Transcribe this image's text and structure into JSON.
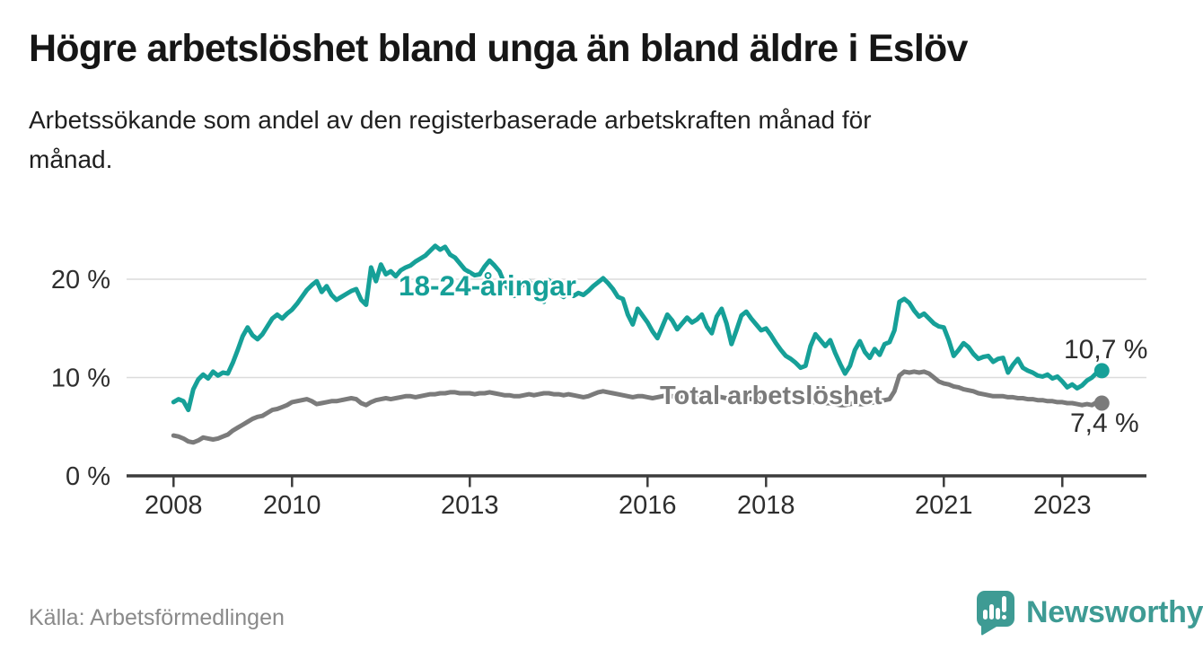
{
  "header": {
    "title": "Högre arbetslöshet bland unga än bland äldre i Eslöv",
    "subtitle": "Arbetssökande som andel av den registerbaserade arbetskraften månad för månad.",
    "subtitle_lines": [
      "Arbetssökande som andel av den registerbaserade arbetskraften månad för",
      "månad."
    ]
  },
  "footer": {
    "source": "Källa: Arbetsförmedlingen",
    "brand": "Newsworthy"
  },
  "colors": {
    "accent_teal": "#16a098",
    "logo_teal": "#3E9B94",
    "gray_line": "#7b7b7b",
    "grid": "#dcdcdc",
    "axis": "#3c3c3c",
    "tick_text": "#2e2e2e",
    "end_label_text": "#2d2d2d"
  },
  "chart_data": {
    "type": "line",
    "title": "",
    "xlabel": "",
    "ylabel": "",
    "unit": "percent of registered labour force",
    "frequency": "monthly",
    "start": "2008-01",
    "end": "2023-09",
    "ylim": [
      0,
      24.5
    ],
    "grid": "horizontal",
    "ytick_values": [
      0,
      10,
      20
    ],
    "ytick_labels": [
      "0 %",
      "10 %",
      "20 %"
    ],
    "xticks": [
      2008,
      2010,
      2013,
      2016,
      2018,
      2021,
      2023
    ],
    "series": [
      {
        "name": "Total arbetslöshet",
        "color": "#7b7b7b",
        "end_label": "7,4 %",
        "end_value": 7.4,
        "values": [
          4.1,
          4.0,
          3.8,
          3.5,
          3.4,
          3.6,
          3.9,
          3.8,
          3.7,
          3.8,
          4.0,
          4.2,
          4.6,
          4.9,
          5.2,
          5.5,
          5.8,
          6.0,
          6.1,
          6.4,
          6.7,
          6.8,
          7.0,
          7.2,
          7.5,
          7.6,
          7.7,
          7.8,
          7.6,
          7.3,
          7.4,
          7.5,
          7.6,
          7.6,
          7.7,
          7.8,
          7.9,
          7.8,
          7.4,
          7.2,
          7.5,
          7.7,
          7.8,
          7.9,
          7.8,
          7.9,
          8.0,
          8.1,
          8.1,
          8.0,
          8.1,
          8.2,
          8.3,
          8.3,
          8.4,
          8.4,
          8.5,
          8.5,
          8.4,
          8.4,
          8.4,
          8.3,
          8.4,
          8.4,
          8.5,
          8.4,
          8.3,
          8.2,
          8.2,
          8.1,
          8.1,
          8.2,
          8.3,
          8.2,
          8.3,
          8.4,
          8.4,
          8.3,
          8.3,
          8.2,
          8.3,
          8.2,
          8.1,
          8.0,
          8.1,
          8.3,
          8.5,
          8.6,
          8.5,
          8.4,
          8.3,
          8.2,
          8.1,
          8.0,
          8.1,
          8.1,
          8.0,
          7.9,
          8.0,
          8.1,
          8.2,
          8.1,
          8.0,
          8.1,
          8.0,
          7.9,
          8.0,
          8.0,
          8.0,
          8.0,
          8.1,
          8.0,
          7.9,
          7.9,
          8.0,
          7.9,
          7.9,
          7.8,
          7.9,
          7.8,
          7.8,
          7.8,
          7.7,
          7.7,
          7.6,
          7.6,
          7.7,
          7.6,
          7.6,
          7.5,
          7.5,
          7.4,
          7.4,
          7.4,
          7.3,
          7.2,
          7.2,
          7.3,
          7.4,
          7.3,
          7.3,
          7.4,
          7.5,
          7.6,
          7.7,
          7.8,
          8.6,
          10.2,
          10.6,
          10.5,
          10.6,
          10.5,
          10.6,
          10.4,
          10.0,
          9.6,
          9.4,
          9.3,
          9.1,
          9.0,
          8.8,
          8.7,
          8.6,
          8.4,
          8.3,
          8.2,
          8.1,
          8.1,
          8.1,
          8.0,
          8.0,
          7.9,
          7.9,
          7.8,
          7.8,
          7.7,
          7.7,
          7.6,
          7.6,
          7.5,
          7.5,
          7.4,
          7.4,
          7.3,
          7.2,
          7.3,
          7.2,
          7.5,
          7.4
        ]
      },
      {
        "name": "18-24-åringar",
        "color": "#16a098",
        "end_label": "10,7 %",
        "end_value": 10.7,
        "values": [
          7.5,
          7.8,
          7.6,
          6.7,
          8.8,
          9.8,
          10.3,
          9.9,
          10.6,
          10.2,
          10.5,
          10.4,
          11.5,
          12.8,
          14.2,
          15.1,
          14.3,
          13.9,
          14.4,
          15.2,
          16.0,
          16.4,
          16.0,
          16.5,
          16.9,
          17.5,
          18.2,
          18.9,
          19.4,
          19.8,
          18.7,
          19.3,
          18.4,
          17.9,
          18.2,
          18.5,
          18.8,
          19.0,
          17.9,
          17.4,
          21.2,
          19.8,
          21.5,
          20.5,
          20.8,
          20.3,
          20.9,
          21.2,
          21.4,
          21.8,
          22.1,
          22.4,
          22.9,
          23.4,
          23.0,
          23.3,
          22.5,
          22.2,
          21.6,
          21.0,
          20.7,
          20.4,
          20.5,
          21.3,
          21.9,
          21.4,
          20.8,
          19.6,
          18.9,
          18.3,
          19.0,
          19.6,
          19.8,
          19.2,
          18.4,
          17.7,
          19.9,
          19.3,
          18.5,
          18.2,
          18.7,
          18.3,
          18.6,
          18.4,
          18.8,
          19.3,
          19.7,
          20.1,
          19.6,
          19.0,
          18.2,
          18.0,
          16.4,
          15.4,
          17.0,
          16.3,
          15.6,
          14.7,
          14.0,
          15.2,
          16.4,
          15.8,
          14.9,
          15.5,
          16.1,
          15.6,
          15.9,
          16.4,
          15.2,
          14.5,
          16.2,
          17.0,
          15.5,
          13.4,
          14.8,
          16.3,
          16.7,
          16.0,
          15.4,
          14.8,
          15.0,
          14.3,
          13.5,
          12.8,
          12.2,
          11.9,
          11.5,
          11.0,
          11.2,
          13.2,
          14.4,
          13.8,
          13.2,
          13.8,
          12.5,
          11.4,
          10.4,
          11.2,
          12.8,
          13.7,
          12.6,
          12.0,
          12.9,
          12.3,
          13.4,
          13.6,
          14.8,
          17.7,
          18.0,
          17.6,
          16.8,
          16.2,
          16.5,
          16.0,
          15.5,
          15.2,
          15.1,
          13.8,
          12.2,
          12.8,
          13.5,
          13.1,
          12.4,
          11.9,
          12.1,
          12.2,
          11.6,
          11.9,
          12.0,
          10.5,
          11.3,
          11.9,
          11.0,
          10.7,
          10.5,
          10.2,
          10.1,
          10.3,
          9.9,
          10.1,
          9.6,
          9.0,
          9.3,
          8.9,
          9.2,
          9.7,
          10.0,
          10.5,
          10.7
        ]
      }
    ]
  }
}
